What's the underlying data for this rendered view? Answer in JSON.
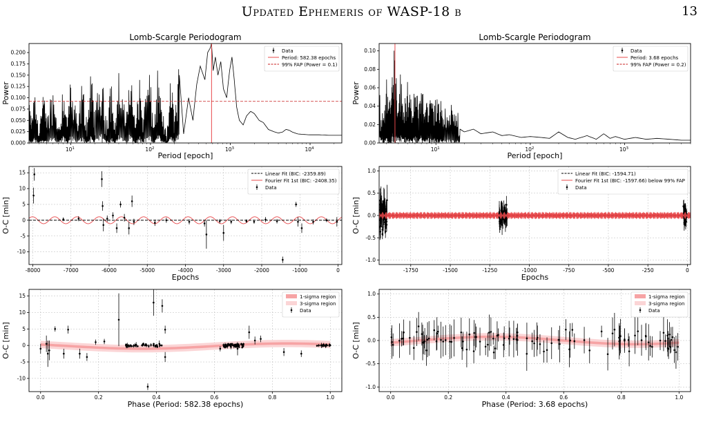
{
  "header": {
    "running_title": "Updated Ephemeris of WASP-18 b",
    "page_number": "13"
  },
  "colors": {
    "data": "#000000",
    "fit": "#e8484a",
    "band1": "#f6a3a4",
    "band3": "#fbd5d6",
    "grid": "#b8b8b8"
  },
  "chart_data": [
    {
      "id": "p0",
      "type": "line",
      "title": "Lomb-Scargle Periodogram",
      "xlabel": "Period [epoch]",
      "ylabel": "Power",
      "xscale": "log",
      "xlim": [
        3,
        25000
      ],
      "ylim": [
        0,
        0.22
      ],
      "xticks": [
        {
          "v": 10,
          "label": "10",
          "exp": "1"
        },
        {
          "v": 100,
          "label": "10",
          "exp": "2"
        },
        {
          "v": 1000,
          "label": "10",
          "exp": "3"
        },
        {
          "v": 10000,
          "label": "10",
          "exp": "4"
        }
      ],
      "yticks": [
        "0.000",
        "0.025",
        "0.050",
        "0.075",
        "0.100",
        "0.125",
        "0.150",
        "0.175",
        "0.200"
      ],
      "peak_period": 582.38,
      "fap_level": 0.092,
      "legend": [
        "Data",
        "Period: 582.38 epochs",
        "99% FAP (Power = 0.1)"
      ],
      "series": [
        {
          "name": "Data",
          "x": [
            3,
            3.2,
            3.5,
            4,
            4.5,
            5,
            6,
            7,
            8,
            9,
            10,
            12,
            14,
            16,
            18,
            20,
            24,
            28,
            32,
            36,
            40,
            48,
            56,
            64,
            72,
            80,
            95,
            110,
            125,
            140,
            160,
            180,
            200,
            230,
            260,
            300,
            340,
            380,
            420,
            480,
            520,
            560,
            582,
            610,
            650,
            700,
            760,
            820,
            900,
            980,
            1050,
            1120,
            1200,
            1300,
            1450,
            1600,
            1800,
            2000,
            2300,
            2600,
            3000,
            3500,
            4000,
            4500,
            5000,
            5500,
            6000,
            7000,
            8000,
            10000,
            13000,
            17000,
            25000
          ],
          "y": [
            0.06,
            0.02,
            0.09,
            0.01,
            0.08,
            0.03,
            0.1,
            0.01,
            0.11,
            0.03,
            0.12,
            0.02,
            0.11,
            0.01,
            0.13,
            0.04,
            0.14,
            0.02,
            0.13,
            0.01,
            0.14,
            0.03,
            0.15,
            0.01,
            0.13,
            0.03,
            0.15,
            0.01,
            0.14,
            0.03,
            0.0,
            0.12,
            0.04,
            0.15,
            0.02,
            0.1,
            0.05,
            0.13,
            0.17,
            0.14,
            0.2,
            0.21,
            0.22,
            0.16,
            0.19,
            0.15,
            0.18,
            0.12,
            0.1,
            0.16,
            0.19,
            0.14,
            0.08,
            0.05,
            0.04,
            0.06,
            0.07,
            0.065,
            0.05,
            0.045,
            0.03,
            0.025,
            0.022,
            0.024,
            0.03,
            0.028,
            0.024,
            0.02,
            0.019,
            0.018,
            0.018,
            0.017,
            0.017
          ]
        }
      ]
    },
    {
      "id": "p1",
      "type": "line",
      "title": "Lomb-Scargle Periodogram",
      "xlabel": "Period [epoch]",
      "ylabel": "Power",
      "xscale": "log",
      "xlim": [
        2.5,
        5000
      ],
      "ylim": [
        0,
        0.108
      ],
      "xticks": [
        {
          "v": 10,
          "label": "10",
          "exp": "1"
        },
        {
          "v": 100,
          "label": "10",
          "exp": "2"
        },
        {
          "v": 1000,
          "label": "10",
          "exp": "3"
        }
      ],
      "yticks": [
        "0.00",
        "0.02",
        "0.04",
        "0.06",
        "0.08",
        "0.10"
      ],
      "peak_period": 3.68,
      "fap_level": 0.2,
      "legend": [
        "Data",
        "Period: 3.68 epochs",
        "99% FAP (Power = 0.2)"
      ],
      "series": [
        {
          "name": "Data",
          "x": [
            2.5,
            2.8,
            3.0,
            3.3,
            3.5,
            3.68,
            3.9,
            4.2,
            4.6,
            5,
            5.5,
            6,
            6.5,
            7,
            7.5,
            8,
            9,
            10,
            11,
            12,
            14,
            16,
            18,
            20,
            25,
            30,
            40,
            50,
            60,
            80,
            100,
            130,
            160,
            200,
            250,
            300,
            400,
            500,
            600,
            700,
            800,
            1000,
            1300,
            1700,
            2200,
            3000,
            4000,
            5000
          ],
          "y": [
            0.05,
            0.02,
            0.06,
            0.03,
            0.09,
            0.108,
            0.04,
            0.06,
            0.03,
            0.07,
            0.02,
            0.05,
            0.03,
            0.06,
            0.02,
            0.04,
            0.035,
            0.04,
            0.03,
            0.02,
            0.025,
            0.02,
            0.015,
            0.012,
            0.015,
            0.01,
            0.012,
            0.008,
            0.009,
            0.006,
            0.007,
            0.006,
            0.005,
            0.012,
            0.006,
            0.004,
            0.008,
            0.004,
            0.01,
            0.005,
            0.007,
            0.004,
            0.006,
            0.004,
            0.005,
            0.004,
            0.003,
            0.003
          ]
        }
      ]
    },
    {
      "id": "p2",
      "type": "scatter",
      "xlabel": "Epochs",
      "ylabel": "O-C [min]",
      "xlim": [
        -8100,
        100
      ],
      "ylim": [
        -14,
        17
      ],
      "xticks": [
        "-8000",
        "-7000",
        "-6000",
        "-5000",
        "-4000",
        "-3000",
        "-2000",
        "-1000",
        "0"
      ],
      "xtick_values": [
        -8000,
        -7000,
        -6000,
        -5000,
        -4000,
        -3000,
        -2000,
        -1000,
        0
      ],
      "yticks": [
        "-10",
        "-5",
        "0",
        "5",
        "10",
        "15"
      ],
      "ytick_values": [
        -10,
        -5,
        0,
        5,
        10,
        15
      ],
      "legend": [
        "Linear Fit (BIC: -2359.89)",
        "Fourier Fit 1st (BIC: -2408.35)",
        "Data"
      ],
      "fourier": {
        "amplitude": 1.1,
        "period": 582.38
      },
      "points": [
        {
          "x": -7980,
          "y": 7.8,
          "e": 2.5
        },
        {
          "x": -7960,
          "y": 14.5,
          "e": 2.0
        },
        {
          "x": -7200,
          "y": 0.3,
          "e": 0.6
        },
        {
          "x": -6800,
          "y": 0.5,
          "e": 0.8
        },
        {
          "x": -6190,
          "y": 13.0,
          "e": 2.5
        },
        {
          "x": -6170,
          "y": 4.5,
          "e": 1.5
        },
        {
          "x": -6150,
          "y": -1.5,
          "e": 2.0
        },
        {
          "x": -6050,
          "y": 0.5,
          "e": 1.0
        },
        {
          "x": -5900,
          "y": 1.5,
          "e": 1.0
        },
        {
          "x": -5800,
          "y": -2.5,
          "e": 1.5
        },
        {
          "x": -5700,
          "y": 5.0,
          "e": 1.0
        },
        {
          "x": -5600,
          "y": 0.8,
          "e": 1.2
        },
        {
          "x": -5480,
          "y": -2.5,
          "e": 2.0
        },
        {
          "x": -5400,
          "y": 6.0,
          "e": 1.8
        },
        {
          "x": -5350,
          "y": -0.5,
          "e": 1.0
        },
        {
          "x": -4800,
          "y": -0.8,
          "e": 1.0
        },
        {
          "x": -4500,
          "y": 0.0,
          "e": 0.8
        },
        {
          "x": -3900,
          "y": -0.5,
          "e": 0.8
        },
        {
          "x": -3500,
          "y": -1.0,
          "e": 1.0
        },
        {
          "x": -3450,
          "y": -4.5,
          "e": 4.5
        },
        {
          "x": -3100,
          "y": -0.3,
          "e": 0.7
        },
        {
          "x": -3000,
          "y": -4.0,
          "e": 2.5
        },
        {
          "x": -2800,
          "y": -0.5,
          "e": 0.7
        },
        {
          "x": -2400,
          "y": -0.3,
          "e": 0.6
        },
        {
          "x": -2200,
          "y": -0.5,
          "e": 0.6
        },
        {
          "x": -1900,
          "y": 0.2,
          "e": 0.8
        },
        {
          "x": -1600,
          "y": -0.3,
          "e": 0.7
        },
        {
          "x": -1450,
          "y": -12.5,
          "e": 1.0
        },
        {
          "x": -1100,
          "y": 5.0,
          "e": 0.8
        },
        {
          "x": -1050,
          "y": -0.5,
          "e": 1.5
        },
        {
          "x": -950,
          "y": -2.5,
          "e": 1.5
        },
        {
          "x": -650,
          "y": -0.5,
          "e": 0.8
        },
        {
          "x": -300,
          "y": 0.0,
          "e": 0.6
        },
        {
          "x": -30,
          "y": -0.5,
          "e": 1.5
        }
      ]
    },
    {
      "id": "p3",
      "type": "scatter",
      "xlabel": "Epochs",
      "ylabel": "O-C [min]",
      "xlim": [
        -1950,
        20
      ],
      "ylim": [
        -1.1,
        1.1
      ],
      "xticks": [
        "-1750",
        "-1500",
        "-1250",
        "-1000",
        "-750",
        "-500",
        "-250",
        "0"
      ],
      "xtick_values": [
        -1750,
        -1500,
        -1250,
        -1000,
        -750,
        -500,
        -250,
        0
      ],
      "yticks": [
        "-1.0",
        "-0.5",
        "0.0",
        "0.5",
        "1.0"
      ],
      "ytick_values": [
        -1.0,
        -0.5,
        0.0,
        0.5,
        1.0
      ],
      "legend": [
        "Linear Fit (BIC: -1594.71)",
        "Fourier Fit 1st (BIC: -1597.66) below 99% FAP",
        "Data"
      ],
      "fourier": {
        "amplitude": 0.07,
        "period": 3.68
      },
      "clusters": [
        {
          "x0": -1945,
          "x1": -1900,
          "n": 60,
          "spread": 0.5,
          "err": 0.35
        },
        {
          "x0": -1190,
          "x1": -1140,
          "n": 50,
          "spread": 0.3,
          "err": 0.25
        },
        {
          "x0": -25,
          "x1": -5,
          "n": 30,
          "spread": 0.3,
          "err": 0.2
        }
      ]
    },
    {
      "id": "p4",
      "type": "scatter",
      "xlabel": "Phase (Period: 582.38 epochs)",
      "ylabel": "O-C [min]",
      "xlim": [
        -0.04,
        1.04
      ],
      "ylim": [
        -14,
        17
      ],
      "xticks": [
        "0.0",
        "0.2",
        "0.4",
        "0.6",
        "0.8",
        "1.0"
      ],
      "xtick_values": [
        0.0,
        0.2,
        0.4,
        0.6,
        0.8,
        1.0
      ],
      "yticks": [
        "-10",
        "-5",
        "0",
        "5",
        "10",
        "15"
      ],
      "ytick_values": [
        -10,
        -5,
        0,
        5,
        10,
        15
      ],
      "legend": [
        "1-sigma region",
        "3-sigma region",
        "Data"
      ],
      "points": [
        {
          "x": 0.0,
          "y": -1.0,
          "e": 1.5
        },
        {
          "x": 0.02,
          "y": 0.5,
          "e": 2.5
        },
        {
          "x": 0.025,
          "y": -2.5,
          "e": 4.0
        },
        {
          "x": 0.03,
          "y": -1.5,
          "e": 3.0
        },
        {
          "x": 0.05,
          "y": 5.0,
          "e": 0.8
        },
        {
          "x": 0.08,
          "y": -2.5,
          "e": 1.5
        },
        {
          "x": 0.095,
          "y": 4.8,
          "e": 1.2
        },
        {
          "x": 0.135,
          "y": -2.5,
          "e": 1.5
        },
        {
          "x": 0.16,
          "y": -3.5,
          "e": 1.2
        },
        {
          "x": 0.19,
          "y": 1.0,
          "e": 0.8
        },
        {
          "x": 0.22,
          "y": 1.2,
          "e": 0.8
        },
        {
          "x": 0.27,
          "y": 7.8,
          "e": 8.0
        },
        {
          "x": 0.3,
          "y": 0.0,
          "e": 0.8
        },
        {
          "x": 0.33,
          "y": 0.2,
          "e": 0.8
        },
        {
          "x": 0.37,
          "y": -12.5,
          "e": 1.0
        },
        {
          "x": 0.39,
          "y": 13.0,
          "e": 4.0
        },
        {
          "x": 0.41,
          "y": 0.5,
          "e": 1.0
        },
        {
          "x": 0.42,
          "y": 12.0,
          "e": 2.0
        },
        {
          "x": 0.43,
          "y": 4.8,
          "e": 1.2
        },
        {
          "x": 0.43,
          "y": -3.5,
          "e": 1.5
        },
        {
          "x": 0.62,
          "y": -1.0,
          "e": 0.8
        },
        {
          "x": 0.68,
          "y": -1.0,
          "e": 2.0
        },
        {
          "x": 0.72,
          "y": 4.0,
          "e": 2.0
        },
        {
          "x": 0.74,
          "y": 1.5,
          "e": 1.2
        },
        {
          "x": 0.76,
          "y": 2.0,
          "e": 1.0
        },
        {
          "x": 0.84,
          "y": -2.0,
          "e": 1.2
        },
        {
          "x": 0.9,
          "y": -2.5,
          "e": 1.0
        },
        {
          "x": 0.97,
          "y": 0.0,
          "e": 0.8
        }
      ],
      "clusters": [
        {
          "x0": 0.29,
          "x1": 0.42,
          "n": 40,
          "spread": 0.6,
          "err": 0.6
        },
        {
          "x0": 0.63,
          "x1": 0.71,
          "n": 45,
          "spread": 0.8,
          "err": 0.7
        },
        {
          "x0": 0.95,
          "x1": 1.0,
          "n": 20,
          "spread": 0.5,
          "err": 0.6
        }
      ],
      "fit_curve": {
        "amplitude": -0.8,
        "offset": -0.2
      }
    },
    {
      "id": "p5",
      "type": "scatter",
      "xlabel": "Phase (Period: 3.68 epochs)",
      "ylabel": "O-C [min]",
      "xlim": [
        -0.04,
        1.04
      ],
      "ylim": [
        -1.1,
        1.1
      ],
      "xticks": [
        "0.0",
        "0.2",
        "0.4",
        "0.6",
        "0.8",
        "1.0"
      ],
      "xtick_values": [
        0.0,
        0.2,
        0.4,
        0.6,
        0.8,
        1.0
      ],
      "yticks": [
        "-1.0",
        "-0.5",
        "0.0",
        "0.5",
        "1.0"
      ],
      "ytick_values": [
        -1.0,
        -0.5,
        0.0,
        0.5,
        1.0
      ],
      "legend": [
        "1-sigma region",
        "3-sigma region",
        "Data"
      ],
      "clusters": [
        {
          "x0": 0.0,
          "x1": 1.0,
          "n": 110,
          "spread": 0.35,
          "err": 0.4
        }
      ],
      "fit_curve": {
        "amplitude": 0.08,
        "offset": 0.0
      }
    }
  ]
}
